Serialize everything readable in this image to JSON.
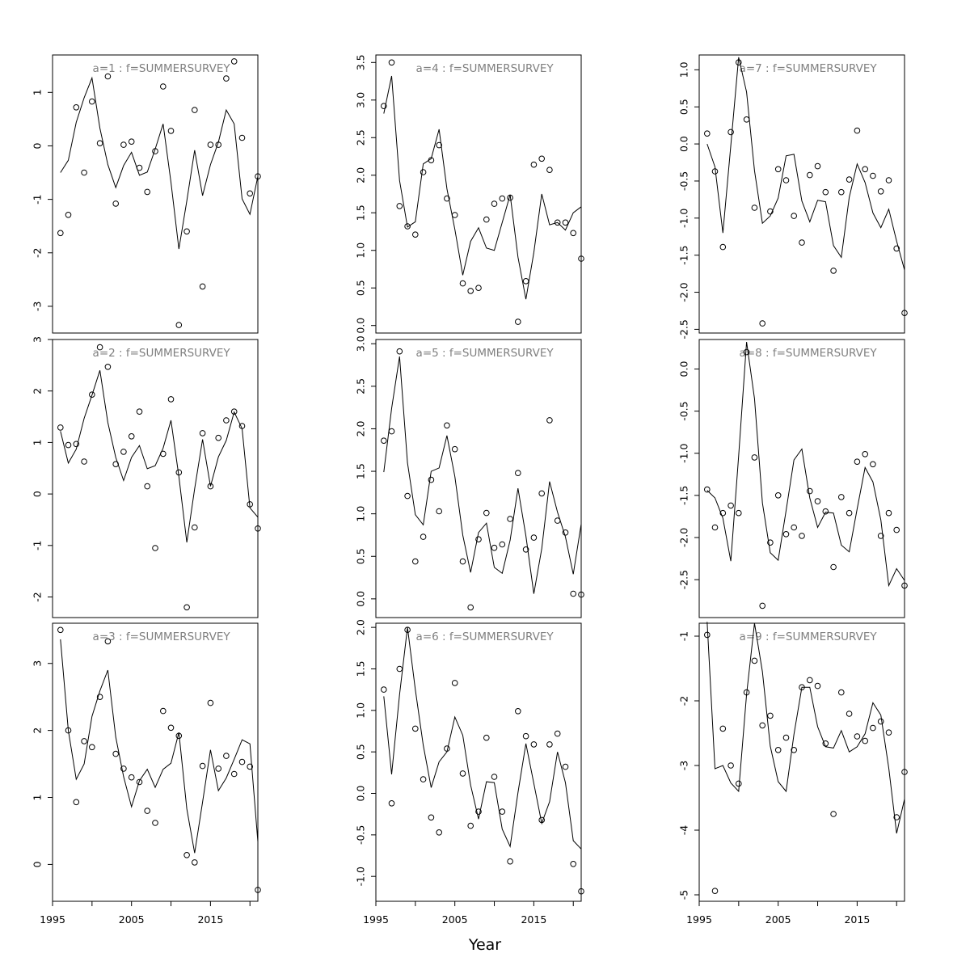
{
  "figure": {
    "xlabel": "Year",
    "x_ticks": [
      1995,
      2005,
      2015
    ],
    "x_range": [
      1995,
      2021
    ]
  },
  "chart_data": [
    {
      "type": "scatter",
      "title": "a=1 : f=SUMMERSURVEY",
      "xlabel": "",
      "ylabel": "",
      "ylim": [
        -3.5,
        1.7
      ],
      "yticks": [
        -3,
        -2,
        -1,
        0,
        1
      ],
      "x": [
        1996,
        1997,
        1998,
        1999,
        2000,
        2001,
        2002,
        2003,
        2004,
        2005,
        2006,
        2007,
        2008,
        2009,
        2010,
        2011,
        2012,
        2013,
        2014,
        2015,
        2016,
        2017,
        2018,
        2019,
        2020,
        2021
      ],
      "series": [
        {
          "kind": "points",
          "values": [
            -1.63,
            -1.29,
            0.72,
            -0.5,
            0.83,
            0.05,
            1.3,
            -1.08,
            0.02,
            0.08,
            -0.41,
            -0.86,
            -0.1,
            1.11,
            0.28,
            -3.35,
            -1.6,
            0.67,
            -2.63,
            0.02,
            0.02,
            1.26,
            1.58,
            0.15,
            -0.89,
            -0.57
          ]
        },
        {
          "kind": "line",
          "values": [
            -0.5,
            -0.27,
            0.44,
            0.9,
            1.27,
            0.33,
            -0.35,
            -0.78,
            -0.37,
            -0.12,
            -0.55,
            -0.49,
            -0.06,
            0.41,
            -0.68,
            -1.93,
            -1.03,
            -0.08,
            -0.93,
            -0.35,
            0.07,
            0.67,
            0.41,
            -0.99,
            -1.28,
            -0.57
          ]
        }
      ]
    },
    {
      "type": "scatter",
      "title": "a=2 : f=SUMMERSURVEY",
      "xlabel": "",
      "ylabel": "",
      "ylim": [
        -2.4,
        3.0
      ],
      "yticks": [
        -2,
        -1,
        0,
        1,
        2,
        3
      ],
      "x": [
        1996,
        1997,
        1998,
        1999,
        2000,
        2001,
        2002,
        2003,
        2004,
        2005,
        2006,
        2007,
        2008,
        2009,
        2010,
        2011,
        2012,
        2013,
        2014,
        2015,
        2016,
        2017,
        2018,
        2019,
        2020,
        2021
      ],
      "series": [
        {
          "kind": "points",
          "values": [
            1.29,
            0.95,
            0.97,
            0.63,
            1.93,
            2.85,
            2.47,
            0.58,
            0.82,
            1.12,
            1.6,
            0.15,
            -1.05,
            0.78,
            1.84,
            0.42,
            -2.2,
            -0.65,
            1.18,
            0.15,
            1.09,
            1.43,
            1.6,
            1.32,
            -0.2,
            -0.67
          ]
        },
        {
          "kind": "line",
          "values": [
            1.22,
            0.6,
            0.87,
            1.47,
            1.92,
            2.4,
            1.39,
            0.71,
            0.26,
            0.71,
            0.94,
            0.49,
            0.55,
            0.89,
            1.43,
            0.34,
            -0.94,
            0.1,
            1.06,
            0.15,
            0.72,
            1.04,
            1.59,
            1.27,
            -0.27,
            -0.45
          ]
        }
      ]
    },
    {
      "type": "scatter",
      "title": "a=3 : f=SUMMERSURVEY",
      "xlabel": "",
      "ylabel": "",
      "ylim": [
        -0.55,
        3.6
      ],
      "yticks": [
        0,
        1,
        2,
        3
      ],
      "x": [
        1996,
        1997,
        1998,
        1999,
        2000,
        2001,
        2002,
        2003,
        2004,
        2005,
        2006,
        2007,
        2008,
        2009,
        2010,
        2011,
        2012,
        2013,
        2014,
        2015,
        2016,
        2017,
        2018,
        2019,
        2020,
        2021
      ],
      "series": [
        {
          "kind": "points",
          "values": [
            3.5,
            2.0,
            0.93,
            1.84,
            1.75,
            2.5,
            3.33,
            1.65,
            1.43,
            1.3,
            1.23,
            0.8,
            0.62,
            2.29,
            2.04,
            1.92,
            0.14,
            0.03,
            1.47,
            2.41,
            1.43,
            1.62,
            1.35,
            1.53,
            1.46,
            -0.38
          ]
        },
        {
          "kind": "line",
          "values": [
            3.36,
            2.0,
            1.27,
            1.5,
            2.21,
            2.59,
            2.9,
            1.9,
            1.31,
            0.86,
            1.25,
            1.42,
            1.15,
            1.42,
            1.51,
            1.97,
            0.83,
            0.17,
            0.93,
            1.71,
            1.1,
            1.29,
            1.57,
            1.86,
            1.8,
            0.34
          ]
        }
      ]
    },
    {
      "type": "scatter",
      "title": "a=4 : f=SUMMERSURVEY",
      "xlabel": "",
      "ylabel": "",
      "ylim": [
        -0.1,
        3.6
      ],
      "yticks": [
        0,
        0.5,
        1,
        1.5,
        2,
        2.5,
        3,
        3.5
      ],
      "x": [
        1996,
        1997,
        1998,
        1999,
        2000,
        2001,
        2002,
        2003,
        2004,
        2005,
        2006,
        2007,
        2008,
        2009,
        2010,
        2011,
        2012,
        2013,
        2014,
        2015,
        2016,
        2017,
        2018,
        2019,
        2020,
        2021
      ],
      "series": [
        {
          "kind": "points",
          "values": [
            2.92,
            3.5,
            1.59,
            1.32,
            1.21,
            2.04,
            2.2,
            2.4,
            1.69,
            1.47,
            0.56,
            0.46,
            0.5,
            1.41,
            1.62,
            1.69,
            1.7,
            0.05,
            0.59,
            2.14,
            2.22,
            2.07,
            1.37,
            1.37,
            1.23,
            0.89
          ]
        },
        {
          "kind": "line",
          "values": [
            2.82,
            3.32,
            1.93,
            1.31,
            1.38,
            2.15,
            2.22,
            2.61,
            1.82,
            1.28,
            0.67,
            1.12,
            1.3,
            1.03,
            1.0,
            1.37,
            1.74,
            0.91,
            0.35,
            0.97,
            1.75,
            1.34,
            1.37,
            1.27,
            1.5,
            1.58
          ]
        }
      ]
    },
    {
      "type": "scatter",
      "title": "a=5 : f=SUMMERSURVEY",
      "xlabel": "",
      "ylabel": "",
      "ylim": [
        -0.22,
        3.05
      ],
      "yticks": [
        0,
        0.5,
        1,
        1.5,
        2,
        2.5,
        3
      ],
      "x": [
        1996,
        1997,
        1998,
        1999,
        2000,
        2001,
        2002,
        2003,
        2004,
        2005,
        2006,
        2007,
        2008,
        2009,
        2010,
        2011,
        2012,
        2013,
        2014,
        2015,
        2016,
        2017,
        2018,
        2019,
        2020,
        2021
      ],
      "series": [
        {
          "kind": "points",
          "values": [
            1.86,
            1.97,
            2.91,
            1.21,
            0.44,
            0.73,
            1.4,
            1.03,
            2.04,
            1.76,
            0.44,
            -0.1,
            0.7,
            1.01,
            0.6,
            0.64,
            0.94,
            1.48,
            0.58,
            0.72,
            1.24,
            2.1,
            0.92,
            0.78,
            0.06,
            0.05
          ]
        },
        {
          "kind": "line",
          "values": [
            1.49,
            2.24,
            2.85,
            1.6,
            0.99,
            0.87,
            1.5,
            1.54,
            1.92,
            1.44,
            0.75,
            0.31,
            0.78,
            0.89,
            0.37,
            0.3,
            0.69,
            1.3,
            0.74,
            0.06,
            0.59,
            1.38,
            1.02,
            0.73,
            0.29,
            0.88
          ]
        }
      ]
    },
    {
      "type": "scatter",
      "title": "a=6 : f=SUMMERSURVEY",
      "xlabel": "",
      "ylabel": "",
      "ylim": [
        -1.3,
        2.05
      ],
      "yticks": [
        -1,
        -0.5,
        0,
        0.5,
        1,
        1.5,
        2
      ],
      "x": [
        1996,
        1997,
        1998,
        1999,
        2000,
        2001,
        2002,
        2003,
        2004,
        2005,
        2006,
        2007,
        2008,
        2009,
        2010,
        2011,
        2012,
        2013,
        2014,
        2015,
        2016,
        2017,
        2018,
        2019,
        2020,
        2021
      ],
      "series": [
        {
          "kind": "points",
          "values": [
            1.25,
            -0.12,
            1.5,
            1.97,
            0.78,
            0.17,
            -0.29,
            -0.47,
            0.54,
            1.33,
            0.24,
            -0.39,
            -0.22,
            0.67,
            0.2,
            -0.22,
            -0.82,
            0.99,
            0.69,
            0.59,
            -0.32,
            0.59,
            0.72,
            0.32,
            -0.85,
            -1.18
          ]
        },
        {
          "kind": "line",
          "values": [
            1.17,
            0.23,
            1.19,
            2.0,
            1.25,
            0.58,
            0.07,
            0.38,
            0.5,
            0.92,
            0.7,
            0.1,
            -0.31,
            0.14,
            0.13,
            -0.43,
            -0.64,
            0.01,
            0.6,
            0.12,
            -0.36,
            -0.1,
            0.5,
            0.13,
            -0.57,
            -0.67
          ]
        }
      ]
    },
    {
      "type": "scatter",
      "title": "a=7 : f=SUMMERSURVEY",
      "xlabel": "",
      "ylabel": "",
      "ylim": [
        -2.55,
        1.2
      ],
      "yticks": [
        -2.5,
        -2,
        -1.5,
        -1,
        -0.5,
        0,
        0.5,
        1
      ],
      "x": [
        1996,
        1997,
        1998,
        1999,
        2000,
        2001,
        2002,
        2003,
        2004,
        2005,
        2006,
        2007,
        2008,
        2009,
        2010,
        2011,
        2012,
        2013,
        2014,
        2015,
        2016,
        2017,
        2018,
        2019,
        2020,
        2021
      ],
      "series": [
        {
          "kind": "points",
          "values": [
            0.14,
            -0.37,
            -1.39,
            0.16,
            1.1,
            0.33,
            -0.86,
            -2.42,
            -0.91,
            -0.34,
            -0.49,
            -0.97,
            -1.33,
            -0.42,
            -0.3,
            -0.65,
            -1.71,
            -0.65,
            -0.48,
            0.18,
            -0.34,
            -0.43,
            -0.64,
            -0.49,
            -1.41,
            -2.28
          ]
        },
        {
          "kind": "line",
          "values": [
            0.0,
            -0.31,
            -1.2,
            -0.02,
            1.17,
            0.7,
            -0.36,
            -1.07,
            -0.97,
            -0.73,
            -0.16,
            -0.14,
            -0.77,
            -1.05,
            -0.76,
            -0.78,
            -1.37,
            -1.53,
            -0.72,
            -0.27,
            -0.52,
            -0.93,
            -1.13,
            -0.88,
            -1.31,
            -1.7
          ]
        }
      ]
    },
    {
      "type": "scatter",
      "title": "a=8 : f=SUMMERSURVEY",
      "xlabel": "",
      "ylabel": "",
      "ylim": [
        -2.95,
        0.35
      ],
      "yticks": [
        -2.5,
        -2,
        -1.5,
        -1,
        -0.5,
        0
      ],
      "x": [
        1996,
        1997,
        1998,
        1999,
        2000,
        2001,
        2002,
        2003,
        2004,
        2005,
        2006,
        2007,
        2008,
        2009,
        2010,
        2011,
        2012,
        2013,
        2014,
        2015,
        2016,
        2017,
        2018,
        2019,
        2020,
        2021
      ],
      "series": [
        {
          "kind": "points",
          "values": [
            -1.43,
            -1.88,
            -1.71,
            -1.62,
            -1.71,
            0.2,
            -1.05,
            -2.81,
            -2.06,
            -1.5,
            -1.96,
            -1.88,
            -1.98,
            -1.45,
            -1.57,
            -1.69,
            -2.35,
            -1.52,
            -1.71,
            -1.1,
            -1.01,
            -1.13,
            -1.98,
            -1.71,
            -1.91,
            -2.57
          ]
        },
        {
          "kind": "line",
          "values": [
            -1.44,
            -1.53,
            -1.77,
            -2.28,
            -1.03,
            0.32,
            -0.35,
            -1.59,
            -2.18,
            -2.27,
            -1.68,
            -1.08,
            -0.95,
            -1.53,
            -1.88,
            -1.7,
            -1.71,
            -2.09,
            -2.17,
            -1.66,
            -1.17,
            -1.34,
            -1.79,
            -2.57,
            -2.37,
            -2.51
          ]
        }
      ]
    },
    {
      "type": "scatter",
      "title": "a=9 : f=SUMMERSURVEY",
      "xlabel": "",
      "ylabel": "",
      "ylim": [
        -5.1,
        -0.8
      ],
      "yticks": [
        -5,
        -4,
        -3,
        -2,
        -1
      ],
      "x": [
        1996,
        1997,
        1998,
        1999,
        2000,
        2001,
        2002,
        2003,
        2004,
        2005,
        2006,
        2007,
        2008,
        2009,
        2010,
        2011,
        2012,
        2013,
        2014,
        2015,
        2016,
        2017,
        2018,
        2019,
        2020,
        2021
      ],
      "series": [
        {
          "kind": "points",
          "values": [
            -0.98,
            -4.94,
            -2.43,
            -3.0,
            -3.28,
            -1.87,
            -1.38,
            -2.38,
            -2.23,
            -2.76,
            -2.57,
            -2.76,
            -1.79,
            -1.68,
            -1.77,
            -2.66,
            -3.75,
            -1.87,
            -2.2,
            -2.55,
            -2.62,
            -2.42,
            -2.32,
            -2.49,
            -3.8,
            -3.1
          ]
        },
        {
          "kind": "line",
          "values": [
            -0.78,
            -3.05,
            -3.0,
            -3.27,
            -3.4,
            -1.9,
            -0.8,
            -1.55,
            -2.7,
            -3.25,
            -3.4,
            -2.52,
            -1.79,
            -1.79,
            -2.4,
            -2.71,
            -2.73,
            -2.46,
            -2.79,
            -2.71,
            -2.51,
            -2.03,
            -2.22,
            -3.04,
            -4.05,
            -3.52
          ]
        }
      ]
    }
  ]
}
